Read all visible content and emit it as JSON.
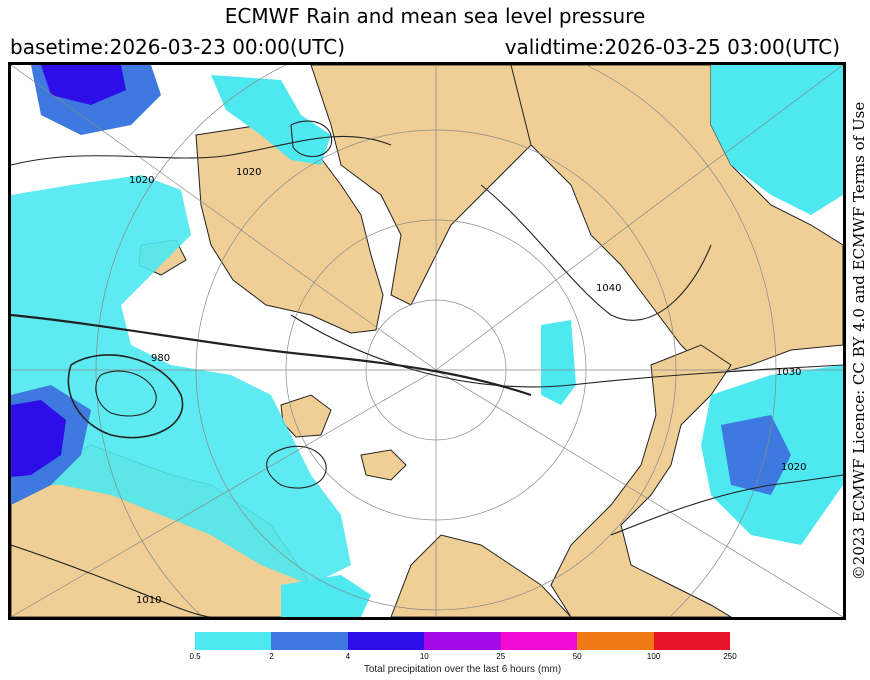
{
  "header": {
    "title": "ECMWF Rain and mean sea level pressure",
    "basetime": "basetime:2026-03-23 00:00(UTC)",
    "validtime": "validtime:2026-03-25 03:00(UTC)"
  },
  "licence": "©2023 ECMWF Licence: CC BY 4.0 and ECMWF Terms of Use",
  "map": {
    "isobar_labels": [
      "1020",
      "1040",
      "1030",
      "1020",
      "980",
      "1020",
      "1010"
    ],
    "colors": {
      "land": "#efcf96",
      "ocean": "#ffffff",
      "coast": "#222222",
      "isobar": "#222222",
      "grid": "#888888"
    }
  },
  "legend": {
    "colors": [
      "#4de8f0",
      "#3e79e0",
      "#2d0ee8",
      "#a30ae6",
      "#f00ad2",
      "#f07a16",
      "#e8142a"
    ],
    "ticks": [
      "0.5",
      "2",
      "4",
      "10",
      "25",
      "50",
      "100",
      "250"
    ],
    "caption": "Total precipitation over the last 6 hours (mm)"
  }
}
